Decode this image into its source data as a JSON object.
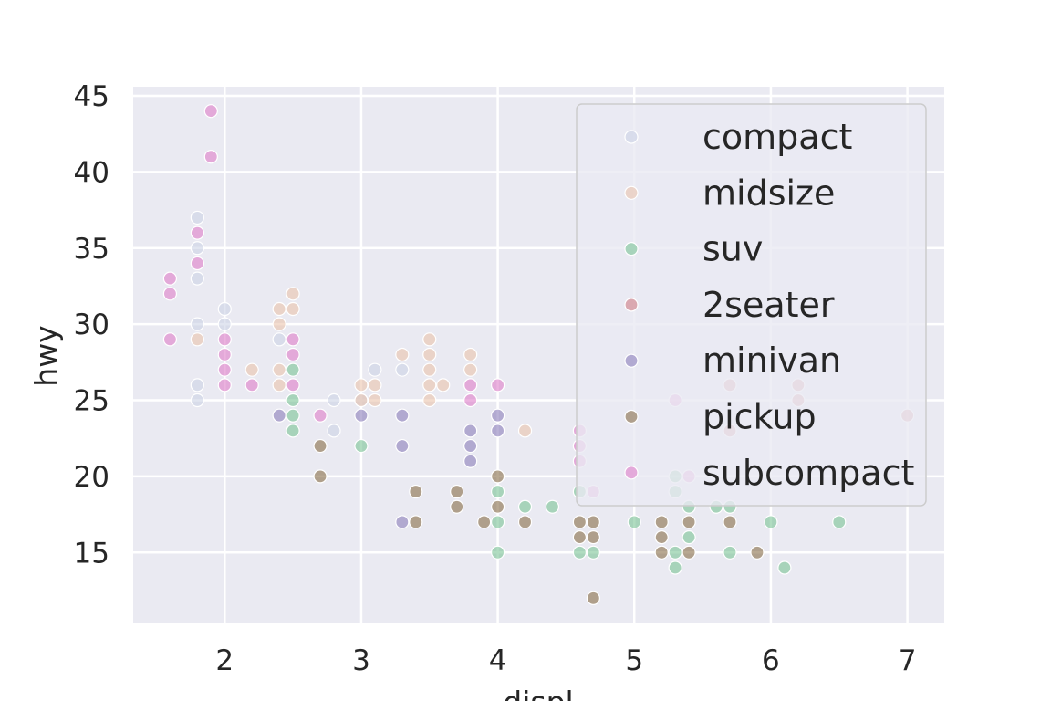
{
  "chart_data": {
    "type": "scatter",
    "xlabel": "displ",
    "ylabel": "hwy",
    "xlim": [
      1.33,
      7.27
    ],
    "ylim": [
      10.4,
      45.6
    ],
    "x_ticks": [
      2,
      3,
      4,
      5,
      6,
      7
    ],
    "y_ticks": [
      15,
      20,
      25,
      30,
      35,
      40,
      45
    ],
    "grid": true,
    "legend_position": "top-right",
    "point_alpha": 0.55,
    "series": [
      {
        "name": "compact",
        "color": "#c9d0e3",
        "points": [
          [
            1.8,
            37
          ],
          [
            1.8,
            35
          ],
          [
            1.8,
            33
          ],
          [
            1.8,
            30
          ],
          [
            1.8,
            26
          ],
          [
            1.8,
            25
          ],
          [
            2.0,
            31
          ],
          [
            2.0,
            30
          ],
          [
            2.4,
            29
          ],
          [
            2.8,
            25
          ],
          [
            2.8,
            23
          ],
          [
            3.1,
            27
          ],
          [
            3.0,
            25
          ],
          [
            3.3,
            27
          ]
        ]
      },
      {
        "name": "midsize",
        "color": "#e9bfa5",
        "points": [
          [
            1.8,
            29
          ],
          [
            2.2,
            27
          ],
          [
            2.4,
            31
          ],
          [
            2.4,
            30
          ],
          [
            2.4,
            27
          ],
          [
            2.4,
            26
          ],
          [
            2.5,
            32
          ],
          [
            2.5,
            31
          ],
          [
            3.0,
            26
          ],
          [
            3.0,
            25
          ],
          [
            3.1,
            26
          ],
          [
            3.1,
            25
          ],
          [
            3.3,
            28
          ],
          [
            3.5,
            29
          ],
          [
            3.5,
            28
          ],
          [
            3.5,
            27
          ],
          [
            3.5,
            26
          ],
          [
            3.5,
            25
          ],
          [
            3.6,
            26
          ],
          [
            3.8,
            28
          ],
          [
            3.8,
            27
          ],
          [
            4.2,
            23
          ]
        ]
      },
      {
        "name": "suv",
        "color": "#6fbf8d",
        "points": [
          [
            2.5,
            27
          ],
          [
            2.5,
            25
          ],
          [
            2.5,
            24
          ],
          [
            2.5,
            23
          ],
          [
            3.0,
            22
          ],
          [
            4.0,
            19
          ],
          [
            4.0,
            17
          ],
          [
            4.0,
            15
          ],
          [
            4.2,
            18
          ],
          [
            4.4,
            18
          ],
          [
            4.6,
            19
          ],
          [
            4.6,
            15
          ],
          [
            4.7,
            15
          ],
          [
            5.0,
            17
          ],
          [
            5.3,
            20
          ],
          [
            5.3,
            19
          ],
          [
            5.3,
            15
          ],
          [
            5.3,
            14
          ],
          [
            5.4,
            18
          ],
          [
            5.4,
            16
          ],
          [
            5.6,
            18
          ],
          [
            5.7,
            18
          ],
          [
            5.7,
            15
          ],
          [
            6.0,
            17
          ],
          [
            6.1,
            14
          ],
          [
            6.5,
            17
          ]
        ]
      },
      {
        "name": "2seater",
        "color": "#cc7178",
        "points": [
          [
            5.7,
            26
          ],
          [
            5.7,
            23
          ],
          [
            6.2,
            26
          ],
          [
            6.2,
            25
          ],
          [
            7.0,
            24
          ]
        ]
      },
      {
        "name": "minivan",
        "color": "#8173b5",
        "points": [
          [
            2.4,
            24
          ],
          [
            3.0,
            24
          ],
          [
            3.3,
            24
          ],
          [
            3.3,
            22
          ],
          [
            3.3,
            17
          ],
          [
            3.8,
            23
          ],
          [
            3.8,
            22
          ],
          [
            3.8,
            21
          ],
          [
            4.0,
            24
          ],
          [
            4.0,
            23
          ]
        ]
      },
      {
        "name": "pickup",
        "color": "#7d6036",
        "points": [
          [
            2.7,
            22
          ],
          [
            2.7,
            20
          ],
          [
            3.4,
            19
          ],
          [
            3.4,
            17
          ],
          [
            3.7,
            19
          ],
          [
            3.7,
            18
          ],
          [
            3.9,
            17
          ],
          [
            4.0,
            20
          ],
          [
            4.0,
            18
          ],
          [
            4.2,
            17
          ],
          [
            4.6,
            17
          ],
          [
            4.6,
            16
          ],
          [
            4.7,
            17
          ],
          [
            4.7,
            16
          ],
          [
            4.7,
            12
          ],
          [
            5.2,
            17
          ],
          [
            5.2,
            16
          ],
          [
            5.2,
            15
          ],
          [
            5.4,
            17
          ],
          [
            5.4,
            15
          ],
          [
            5.7,
            17
          ],
          [
            5.9,
            15
          ]
        ]
      },
      {
        "name": "subcompact",
        "color": "#dc72c4",
        "points": [
          [
            1.6,
            33
          ],
          [
            1.6,
            32
          ],
          [
            1.6,
            29
          ],
          [
            1.8,
            36
          ],
          [
            1.8,
            34
          ],
          [
            1.9,
            44
          ],
          [
            1.9,
            41
          ],
          [
            2.0,
            29
          ],
          [
            2.0,
            28
          ],
          [
            2.0,
            27
          ],
          [
            2.0,
            26
          ],
          [
            2.2,
            26
          ],
          [
            2.5,
            29
          ],
          [
            2.5,
            28
          ],
          [
            2.5,
            26
          ],
          [
            2.7,
            24
          ],
          [
            3.8,
            26
          ],
          [
            3.8,
            25
          ],
          [
            4.0,
            26
          ],
          [
            4.6,
            23
          ],
          [
            4.6,
            22
          ],
          [
            4.6,
            21
          ],
          [
            4.7,
            19
          ],
          [
            5.3,
            25
          ],
          [
            5.4,
            20
          ]
        ]
      }
    ]
  }
}
